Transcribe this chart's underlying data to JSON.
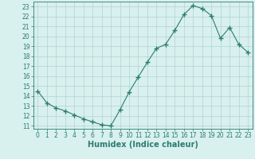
{
  "x": [
    0,
    1,
    2,
    3,
    4,
    5,
    6,
    7,
    8,
    9,
    10,
    11,
    12,
    13,
    14,
    15,
    16,
    17,
    18,
    19,
    20,
    21,
    22,
    23
  ],
  "y": [
    14.5,
    13.3,
    12.8,
    12.5,
    12.1,
    11.7,
    11.4,
    11.1,
    11.0,
    12.6,
    14.4,
    15.9,
    17.4,
    18.8,
    19.2,
    20.6,
    22.2,
    23.1,
    22.8,
    22.1,
    19.8,
    20.9,
    19.2,
    18.4
  ],
  "line_color": "#2d7d6e",
  "marker": "+",
  "marker_size": 4,
  "bg_color": "#d8f0ee",
  "grid_color": "#b0d4d0",
  "xlabel": "Humidex (Indice chaleur)",
  "xlim": [
    -0.5,
    23.5
  ],
  "ylim": [
    10.7,
    23.5
  ],
  "yticks": [
    11,
    12,
    13,
    14,
    15,
    16,
    17,
    18,
    19,
    20,
    21,
    22,
    23
  ],
  "xticks": [
    0,
    1,
    2,
    3,
    4,
    5,
    6,
    7,
    8,
    9,
    10,
    11,
    12,
    13,
    14,
    15,
    16,
    17,
    18,
    19,
    20,
    21,
    22,
    23
  ],
  "tick_fontsize": 5.5,
  "xlabel_fontsize": 7.0
}
